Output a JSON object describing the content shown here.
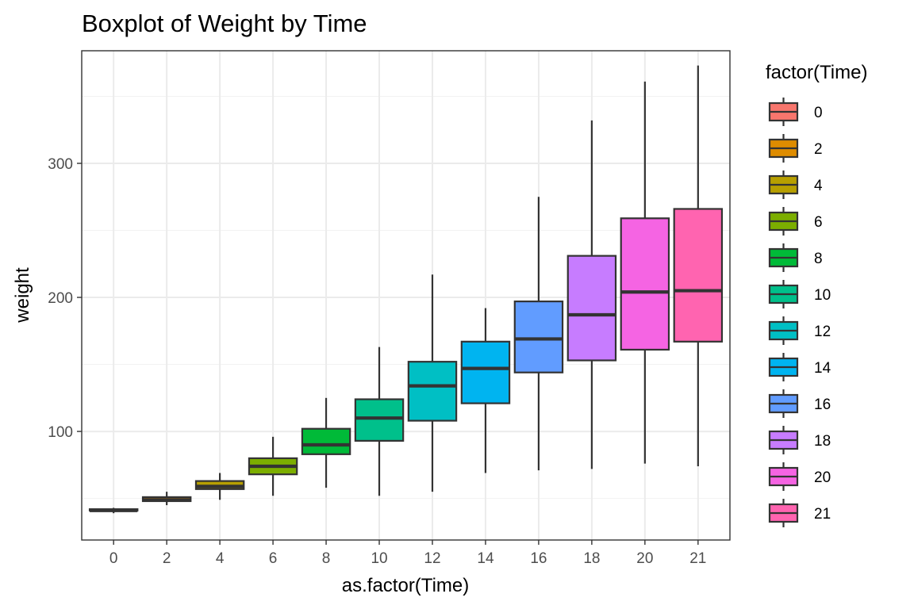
{
  "chart_data": {
    "type": "boxplot",
    "title": "Boxplot of Weight by Time",
    "xlabel": "as.factor(Time)",
    "ylabel": "weight",
    "ylim": [
      19,
      384
    ],
    "yticks": [
      100,
      200,
      300
    ],
    "grid": true,
    "legend": {
      "title": "factor(Time)",
      "placement": "right"
    },
    "categories": [
      "0",
      "2",
      "4",
      "6",
      "8",
      "10",
      "12",
      "14",
      "16",
      "18",
      "20",
      "21"
    ],
    "series": [
      {
        "label": "0",
        "color": "#F8766D",
        "whisker_low": 39,
        "q1": 41,
        "median": 41,
        "q3": 42,
        "whisker_high": 43
      },
      {
        "label": "2",
        "color": "#DE8C00",
        "whisker_low": 45,
        "q1": 48,
        "median": 49,
        "q3": 51,
        "whisker_high": 55
      },
      {
        "label": "4",
        "color": "#B79F00",
        "whisker_low": 49,
        "q1": 57,
        "median": 59,
        "q3": 63,
        "whisker_high": 69
      },
      {
        "label": "6",
        "color": "#7CAE00",
        "whisker_low": 52,
        "q1": 68,
        "median": 74,
        "q3": 80,
        "whisker_high": 96
      },
      {
        "label": "8",
        "color": "#00BA38",
        "whisker_low": 58,
        "q1": 83,
        "median": 90,
        "q3": 102,
        "whisker_high": 125
      },
      {
        "label": "10",
        "color": "#00C08B",
        "whisker_low": 52,
        "q1": 93,
        "median": 110,
        "q3": 124,
        "whisker_high": 163
      },
      {
        "label": "12",
        "color": "#00BFC4",
        "whisker_low": 55,
        "q1": 108,
        "median": 134,
        "q3": 152,
        "whisker_high": 217
      },
      {
        "label": "14",
        "color": "#00B4F0",
        "whisker_low": 69,
        "q1": 121,
        "median": 147,
        "q3": 167,
        "whisker_high": 192
      },
      {
        "label": "16",
        "color": "#619CFF",
        "whisker_low": 71,
        "q1": 144,
        "median": 169,
        "q3": 197,
        "whisker_high": 275
      },
      {
        "label": "18",
        "color": "#C77CFF",
        "whisker_low": 72,
        "q1": 153,
        "median": 187,
        "q3": 231,
        "whisker_high": 332
      },
      {
        "label": "20",
        "color": "#F564E3",
        "whisker_low": 76,
        "q1": 161,
        "median": 204,
        "q3": 259,
        "whisker_high": 361
      },
      {
        "label": "21",
        "color": "#FF64B0",
        "whisker_low": 74,
        "q1": 167,
        "median": 205,
        "q3": 266,
        "whisker_high": 373
      }
    ]
  }
}
